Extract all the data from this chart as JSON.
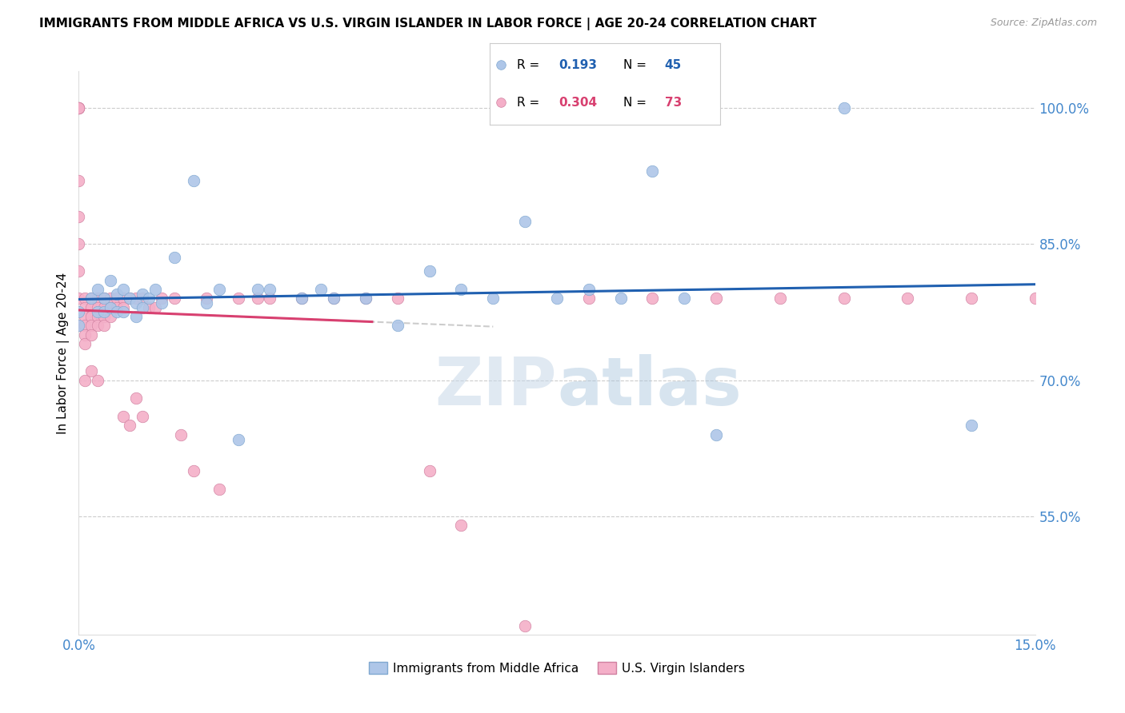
{
  "title": "IMMIGRANTS FROM MIDDLE AFRICA VS U.S. VIRGIN ISLANDER IN LABOR FORCE | AGE 20-24 CORRELATION CHART",
  "source": "Source: ZipAtlas.com",
  "ylabel": "In Labor Force | Age 20-24",
  "xlim": [
    0.0,
    0.15
  ],
  "ylim": [
    0.42,
    1.04
  ],
  "xtick_positions": [
    0.0,
    0.03,
    0.06,
    0.09,
    0.12,
    0.15
  ],
  "xtick_labels": [
    "0.0%",
    "",
    "",
    "",
    "",
    "15.0%"
  ],
  "ytick_vals_right": [
    0.55,
    0.7,
    0.85,
    1.0
  ],
  "ytick_labels_right": [
    "55.0%",
    "70.0%",
    "85.0%",
    "100.0%"
  ],
  "watermark": "ZIPatlas",
  "blue_color": "#aec6e8",
  "pink_color": "#f4afc8",
  "blue_line_color": "#2060b0",
  "pink_line_color": "#d84070",
  "blue_edge_color": "#80a8d0",
  "pink_edge_color": "#d080a0",
  "R_blue": "0.193",
  "N_blue": "45",
  "R_pink": "0.304",
  "N_pink": "73",
  "grid_color": "#cccccc",
  "blue_scatter_x": [
    0.0,
    0.0,
    0.002,
    0.003,
    0.003,
    0.004,
    0.004,
    0.005,
    0.005,
    0.006,
    0.006,
    0.007,
    0.007,
    0.008,
    0.009,
    0.009,
    0.01,
    0.01,
    0.011,
    0.012,
    0.013,
    0.015,
    0.018,
    0.02,
    0.022,
    0.025,
    0.028,
    0.03,
    0.035,
    0.038,
    0.04,
    0.045,
    0.05,
    0.055,
    0.06,
    0.065,
    0.07,
    0.075,
    0.08,
    0.085,
    0.09,
    0.095,
    0.1,
    0.12,
    0.14
  ],
  "blue_scatter_y": [
    0.775,
    0.76,
    0.79,
    0.8,
    0.775,
    0.79,
    0.775,
    0.81,
    0.78,
    0.795,
    0.775,
    0.8,
    0.775,
    0.79,
    0.785,
    0.77,
    0.795,
    0.78,
    0.79,
    0.8,
    0.785,
    0.835,
    0.92,
    0.785,
    0.8,
    0.635,
    0.8,
    0.8,
    0.79,
    0.8,
    0.79,
    0.79,
    0.76,
    0.82,
    0.8,
    0.79,
    0.875,
    0.79,
    0.8,
    0.79,
    0.93,
    0.79,
    0.64,
    1.0,
    0.65
  ],
  "pink_scatter_x": [
    0.0,
    0.0,
    0.0,
    0.0,
    0.0,
    0.0,
    0.0,
    0.0,
    0.0,
    0.0,
    0.001,
    0.001,
    0.001,
    0.001,
    0.001,
    0.001,
    0.001,
    0.002,
    0.002,
    0.002,
    0.002,
    0.002,
    0.002,
    0.003,
    0.003,
    0.003,
    0.003,
    0.003,
    0.004,
    0.004,
    0.004,
    0.004,
    0.005,
    0.005,
    0.005,
    0.006,
    0.006,
    0.007,
    0.007,
    0.007,
    0.008,
    0.008,
    0.009,
    0.009,
    0.01,
    0.01,
    0.011,
    0.012,
    0.013,
    0.015,
    0.016,
    0.018,
    0.02,
    0.022,
    0.025,
    0.028,
    0.03,
    0.035,
    0.04,
    0.045,
    0.05,
    0.055,
    0.06,
    0.07,
    0.08,
    0.09,
    0.1,
    0.11,
    0.12,
    0.13,
    0.14,
    0.15,
    0.155
  ],
  "pink_scatter_y": [
    1.0,
    1.0,
    1.0,
    1.0,
    0.92,
    0.88,
    0.85,
    0.82,
    0.79,
    0.76,
    0.79,
    0.78,
    0.77,
    0.76,
    0.75,
    0.74,
    0.7,
    0.79,
    0.78,
    0.77,
    0.76,
    0.75,
    0.71,
    0.79,
    0.78,
    0.77,
    0.76,
    0.7,
    0.79,
    0.78,
    0.77,
    0.76,
    0.79,
    0.78,
    0.77,
    0.79,
    0.78,
    0.79,
    0.78,
    0.66,
    0.79,
    0.65,
    0.79,
    0.68,
    0.79,
    0.66,
    0.78,
    0.78,
    0.79,
    0.79,
    0.64,
    0.6,
    0.79,
    0.58,
    0.79,
    0.79,
    0.79,
    0.79,
    0.79,
    0.79,
    0.79,
    0.6,
    0.54,
    0.43,
    0.79,
    0.79,
    0.79,
    0.79,
    0.79,
    0.79,
    0.79,
    0.79,
    0.79
  ]
}
